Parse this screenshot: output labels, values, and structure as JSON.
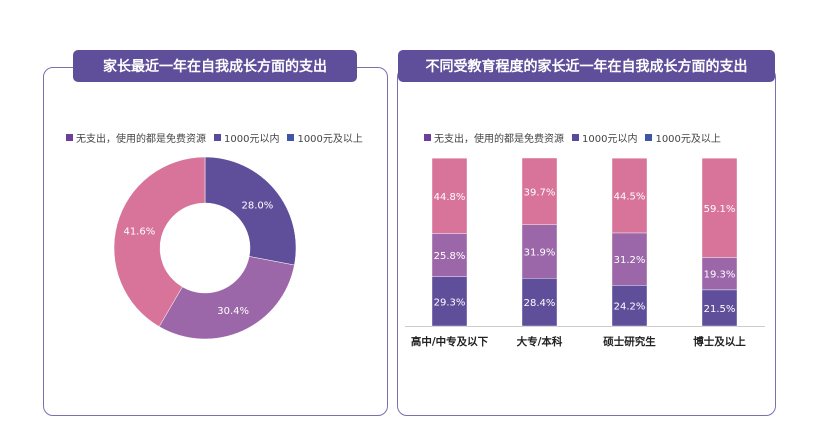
{
  "legend": [
    {
      "label": "无支出，使用的都是免费资源",
      "color": "#6b3f9a"
    },
    {
      "label": "1000元以内",
      "color": "#5a4a9e"
    },
    {
      "label": "1000元及以上",
      "color": "#3f56a6"
    }
  ],
  "chart_data": [
    {
      "type": "pie",
      "title": "家长最近一年在自我成长方面的支出",
      "donut": true,
      "slices": [
        {
          "label": "无支出，使用的都是免费资源",
          "value": 28.0,
          "display": "28.0%",
          "color": "#5f4e9a"
        },
        {
          "label": "1000元以内",
          "value": 30.4,
          "display": "30.4%",
          "color": "#9b67a9"
        },
        {
          "label": "1000元及以上",
          "value": 41.6,
          "display": "41.6%",
          "color": "#d87399"
        }
      ]
    },
    {
      "type": "bar",
      "stacked": true,
      "title": "不同受教育程度的家长近一年在自我成长方面的支出",
      "categories": [
        "高中/中专及以下",
        "大专/本科",
        "硕士研究生",
        "博士及以上"
      ],
      "series": [
        {
          "name": "无支出，使用的都是免费资源",
          "values": [
            29.3,
            28.4,
            24.2,
            21.5
          ],
          "labels": [
            "29.3%",
            "28.4%",
            "24.2%",
            "21.5%"
          ],
          "color": "#5f4e9a"
        },
        {
          "name": "1000元以内",
          "values": [
            25.8,
            31.9,
            31.2,
            19.3
          ],
          "labels": [
            "25.8%",
            "31.9%",
            "31.2%",
            "19.3%"
          ],
          "color": "#9b67a9"
        },
        {
          "name": "1000元及以上",
          "values": [
            44.8,
            39.7,
            44.5,
            59.1
          ],
          "labels": [
            "44.8%",
            "39.7%",
            "44.5%",
            "59.1%"
          ],
          "color": "#d87399"
        }
      ]
    }
  ]
}
